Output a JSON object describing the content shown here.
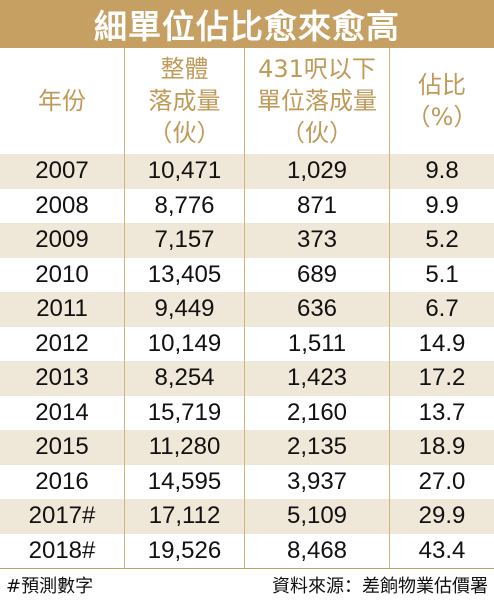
{
  "title": "細單位佔比愈來愈高",
  "headers": {
    "year": "年份",
    "total": "整體\n落成量\n（伙）",
    "small": "431呎以下\n單位落成量\n（伙）",
    "pct": "佔比\n（%）"
  },
  "rows": [
    {
      "year": "2007",
      "total": "10,471",
      "small": "1,029",
      "pct": "9.8"
    },
    {
      "year": "2008",
      "total": "8,776",
      "small": "871",
      "pct": "9.9"
    },
    {
      "year": "2009",
      "total": "7,157",
      "small": "373",
      "pct": "5.2"
    },
    {
      "year": "2010",
      "total": "13,405",
      "small": "689",
      "pct": "5.1"
    },
    {
      "year": "2011",
      "total": "9,449",
      "small": "636",
      "pct": "6.7"
    },
    {
      "year": "2012",
      "total": "10,149",
      "small": "1,511",
      "pct": "14.9"
    },
    {
      "year": "2013",
      "total": "8,254",
      "small": "1,423",
      "pct": "17.2"
    },
    {
      "year": "2014",
      "total": "15,719",
      "small": "2,160",
      "pct": "13.7"
    },
    {
      "year": "2015",
      "total": "11,280",
      "small": "2,135",
      "pct": "18.9"
    },
    {
      "year": "2016",
      "total": "14,595",
      "small": "3,937",
      "pct": "27.0"
    },
    {
      "year": "2017#",
      "total": "17,112",
      "small": "5,109",
      "pct": "29.9"
    },
    {
      "year": "2018#",
      "total": "19,526",
      "small": "8,468",
      "pct": "43.4"
    }
  ],
  "footer": {
    "note": "#預測數字",
    "source": "資料來源：差餉物業估價署"
  },
  "colors": {
    "accent": "#c5a062",
    "header_text": "#c09a58",
    "row_shade": "#efe7d8"
  }
}
